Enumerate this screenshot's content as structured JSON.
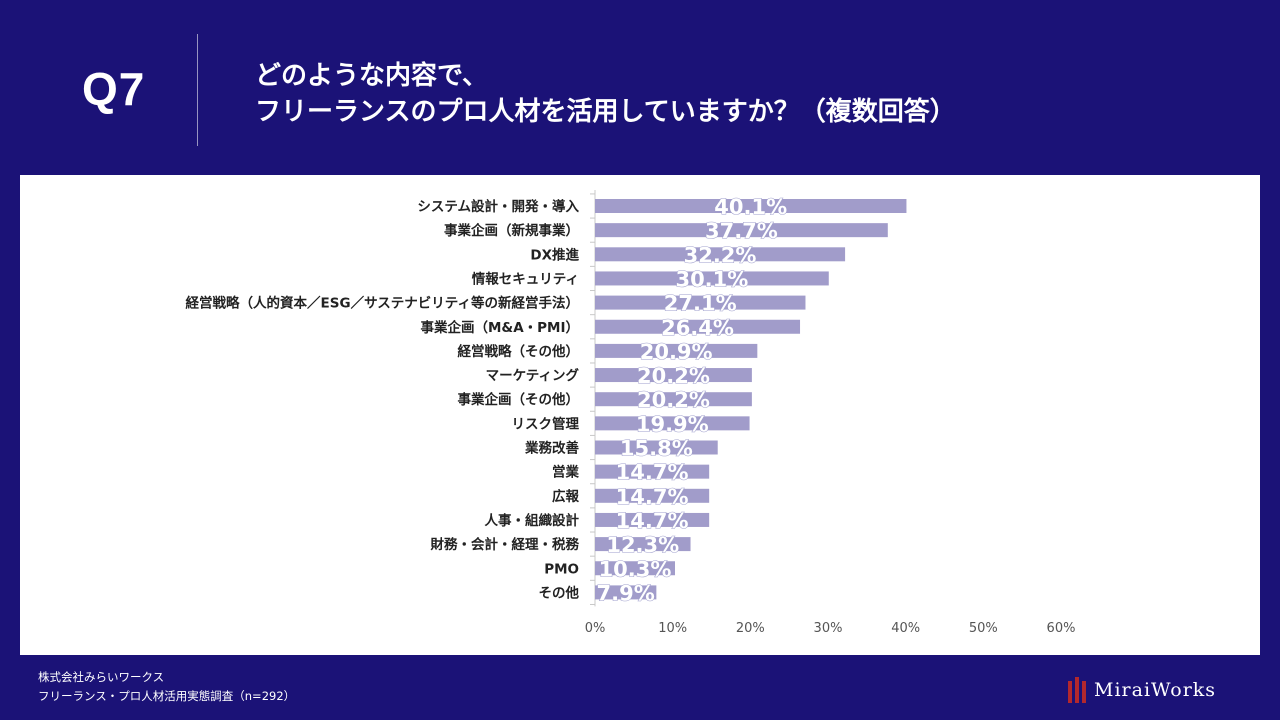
{
  "header": {
    "question_number": "Q7",
    "title_line1": "どのような内容で、",
    "title_line2": "フリーランスのプロ人材を活用していますか？（複数回答）"
  },
  "chart_data": {
    "type": "bar",
    "orientation": "horizontal",
    "categories": [
      "システム設計・開発・導入",
      "事業企画（新規事業）",
      "DX推進",
      "情報セキュリティ",
      "経営戦略（人的資本／ESG／サステナビリティ等の新経営手法）",
      "事業企画（M&A・PMI）",
      "経営戦略（その他）",
      "マーケティング",
      "事業企画（その他）",
      "リスク管理",
      "業務改善",
      "営業",
      "広報",
      "人事・組織設計",
      "財務・会計・経理・税務",
      "PMO",
      "その他"
    ],
    "values": [
      40.1,
      37.7,
      32.2,
      30.1,
      27.1,
      26.4,
      20.9,
      20.2,
      20.2,
      19.9,
      15.8,
      14.7,
      14.7,
      14.7,
      12.3,
      10.3,
      7.9
    ],
    "value_labels": [
      "40.1%",
      "37.7%",
      "32.2%",
      "30.1%",
      "27.1%",
      "26.4%",
      "20.9%",
      "20.2%",
      "20.2%",
      "19.9%",
      "15.8%",
      "14.7%",
      "14.7%",
      "14.7%",
      "12.3%",
      "10.3%",
      "7.9%"
    ],
    "xlim": [
      0,
      60
    ],
    "xticks": [
      0,
      10,
      20,
      30,
      40,
      50,
      60
    ],
    "xtick_labels": [
      "0%",
      "10%",
      "20%",
      "30%",
      "40%",
      "50%",
      "60%"
    ],
    "bar_color": "#a19cca",
    "grid": false,
    "legend": "none"
  },
  "footer": {
    "company": "株式会社みらいワークス",
    "survey": "フリーランス・プロ人材活用実態調査（n=292）"
  },
  "logo": {
    "text": "MiraiWorks",
    "accent_color": "#b3282d"
  },
  "colors": {
    "background": "#1b1277",
    "panel": "#ffffff"
  }
}
